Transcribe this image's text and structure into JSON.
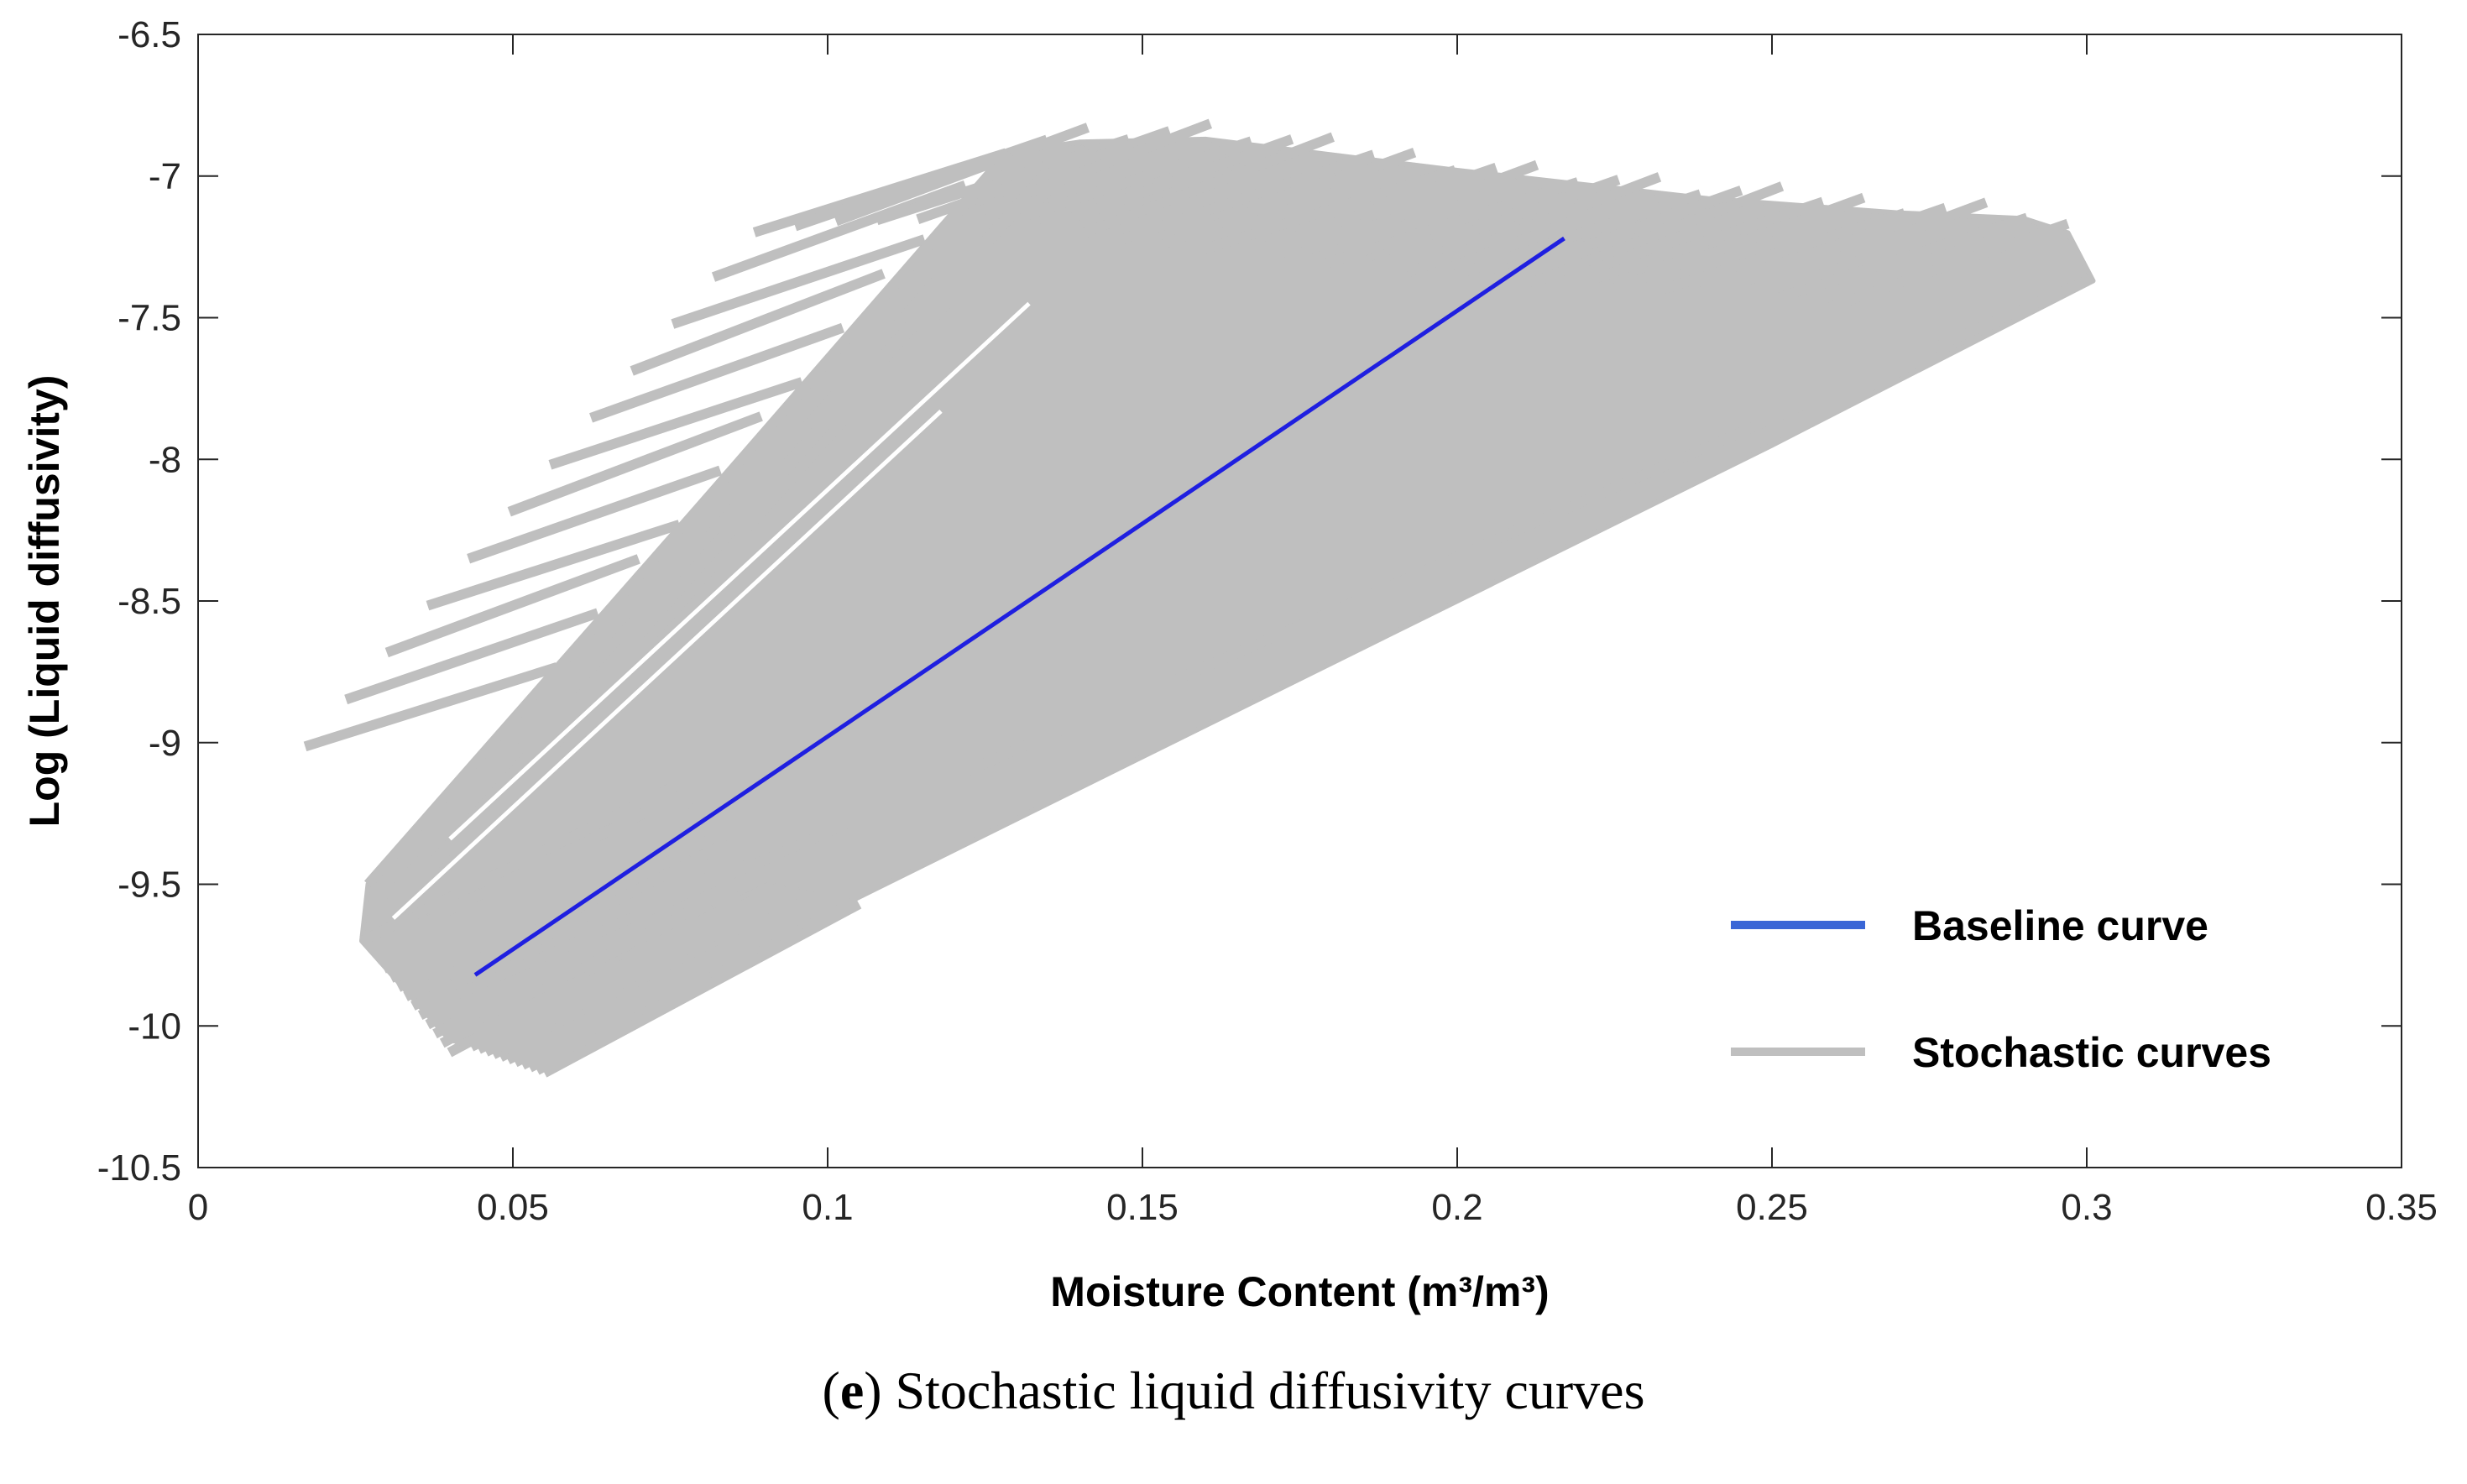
{
  "chart_data": {
    "type": "line",
    "title": "",
    "xlabel": "Moisture Content (m³/m³)",
    "ylabel": "Log (Liquid diffusivity)",
    "xlim": [
      0,
      0.35
    ],
    "ylim": [
      -10.5,
      -6.5
    ],
    "x_ticks": [
      0,
      0.05,
      0.1,
      0.15,
      0.2,
      0.25,
      0.3,
      0.35
    ],
    "x_tick_labels": [
      "0",
      "0.05",
      "0.1",
      "0.15",
      "0.2",
      "0.25",
      "0.3",
      "0.35"
    ],
    "y_ticks": [
      -6.5,
      -7,
      -7.5,
      -8,
      -8.5,
      -9,
      -9.5,
      -10,
      -10.5
    ],
    "y_tick_labels": [
      "-6.5",
      "-7",
      "-7.5",
      "-8",
      "-8.5",
      "-9",
      "-9.5",
      "-10",
      "-10.5"
    ],
    "series": [
      {
        "name": "Baseline curve",
        "color": "#1f1fe0",
        "x": [
          0.044,
          0.217
        ],
        "y": [
          -9.82,
          -7.22
        ]
      },
      {
        "name": "Stochastic curves",
        "color": "#bfbfbf",
        "envelope": {
          "upper_x": [
            0.027,
            0.128,
            0.14,
            0.16,
            0.2,
            0.24,
            0.27,
            0.29,
            0.297
          ],
          "upper_y": [
            -9.5,
            -6.92,
            -6.88,
            -6.87,
            -6.98,
            -7.08,
            -7.13,
            -7.15,
            -7.2
          ],
          "lower_x": [
            0.026,
            0.04,
            0.055,
            0.1,
            0.15,
            0.2,
            0.25,
            0.301
          ],
          "lower_y": [
            -9.7,
            -10.05,
            -10.12,
            -9.6,
            -9.05,
            -8.5,
            -7.95,
            -7.37
          ]
        },
        "outliers": [
          {
            "x": [
              0.027,
              0.129
            ],
            "y": [
              -9.5,
              -6.92
            ]
          },
          {
            "x": [
              0.03,
              0.134
            ],
            "y": [
              -9.55,
              -6.95
            ]
          },
          {
            "x": [
              0.033,
              0.141
            ],
            "y": [
              -9.6,
              -6.9
            ]
          },
          {
            "x": [
              0.04,
              0.3
            ],
            "y": [
              -9.9,
              -7.37
            ]
          }
        ]
      }
    ],
    "legend": {
      "position": "lower-right",
      "entries": [
        {
          "label": "Baseline curve",
          "color": "#3a66d6"
        },
        {
          "label": "Stochastic curves",
          "color": "#bfbfbf"
        }
      ]
    }
  },
  "caption": {
    "letter": "e",
    "text": "Stochastic liquid diffusivity curves"
  }
}
